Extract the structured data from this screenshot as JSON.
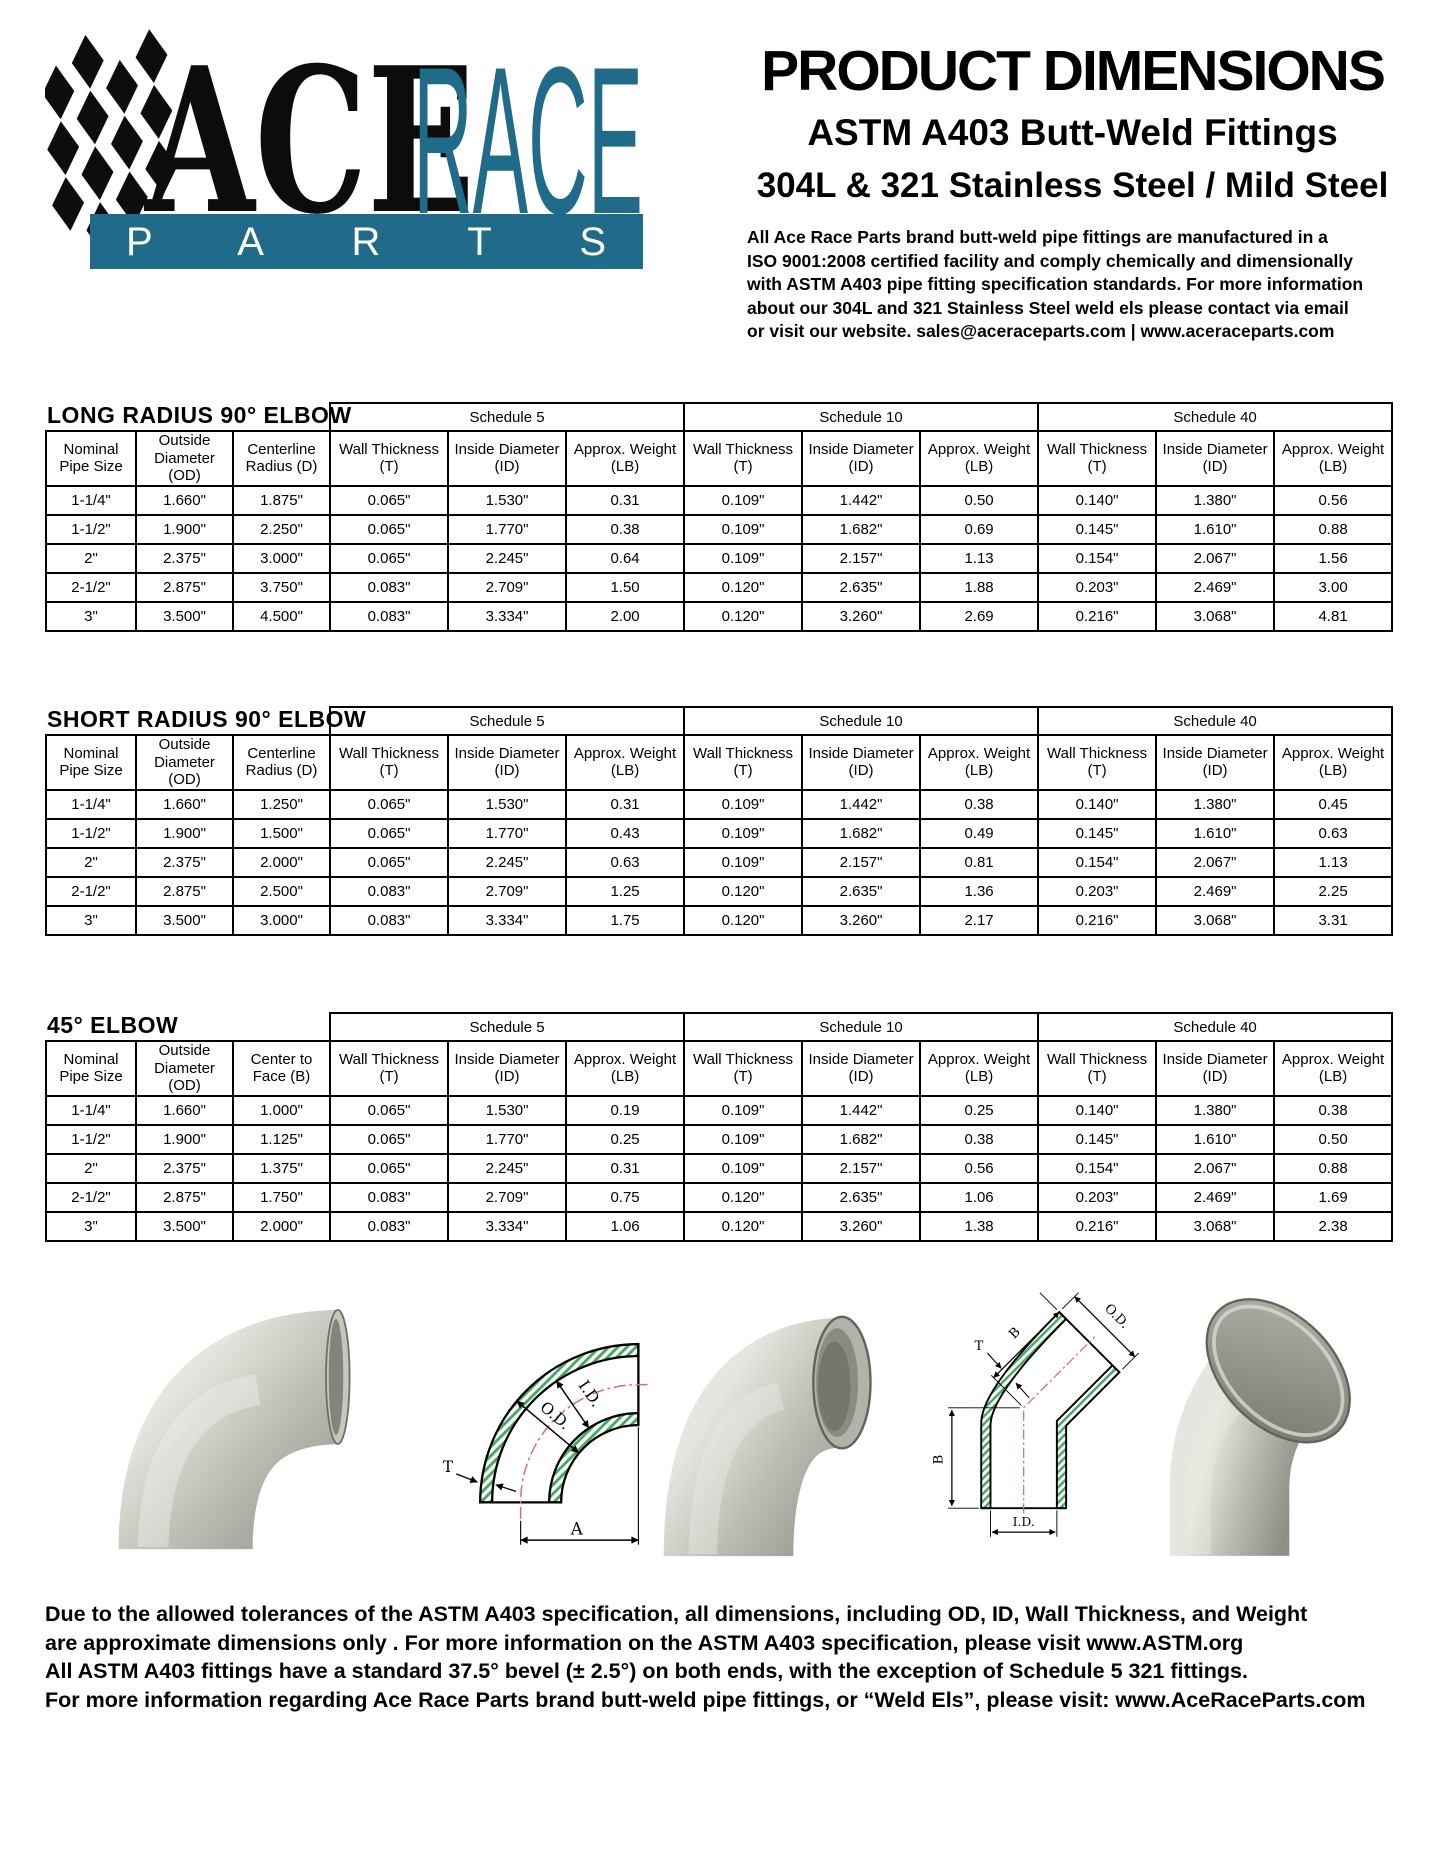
{
  "logo": {
    "ace": "ACE",
    "race": "RACE",
    "parts": "PARTS"
  },
  "colors": {
    "teal": "#206b89",
    "hatch_green": "#4aa863",
    "centerline_red": "#e06a6a",
    "text_black": "#000000"
  },
  "header": {
    "title": "PRODUCT DIMENSIONS",
    "subtitle1": "ASTM A403 Butt-Weld Fittings",
    "subtitle2": "304L & 321 Stainless Steel / Mild Steel",
    "para_lines": [
      "All Ace Race Parts brand butt-weld pipe fittings are manufactured in a",
      "ISO 9001:2008 certified facility and comply chemically and dimensionally",
      "with ASTM A403 pipe fitting specification standards. For more information",
      "about our 304L and 321 Stainless Steel weld els please contact via email",
      "or visit our website. sales@aceraceparts.com | www.aceraceparts.com"
    ]
  },
  "tables": [
    {
      "title": "LONG RADIUS 90° ELBOW",
      "base_headers": [
        "Nominal Pipe Size",
        "Outside Diameter (OD)",
        "Centerline Radius (D)"
      ],
      "schedule_headers": [
        "Schedule 5",
        "Schedule 10",
        "Schedule 40"
      ],
      "sub_headers": [
        "Wall Thickness (T)",
        "Inside Diameter (ID)",
        "Approx. Weight (LB)"
      ],
      "rows": [
        [
          "1-1/4\"",
          "1.660\"",
          "1.875\"",
          "0.065\"",
          "1.530\"",
          "0.31",
          "0.109\"",
          "1.442\"",
          "0.50",
          "0.140\"",
          "1.380\"",
          "0.56"
        ],
        [
          "1-1/2\"",
          "1.900\"",
          "2.250\"",
          "0.065\"",
          "1.770\"",
          "0.38",
          "0.109\"",
          "1.682\"",
          "0.69",
          "0.145\"",
          "1.610\"",
          "0.88"
        ],
        [
          "2\"",
          "2.375\"",
          "3.000\"",
          "0.065\"",
          "2.245\"",
          "0.64",
          "0.109\"",
          "2.157\"",
          "1.13",
          "0.154\"",
          "2.067\"",
          "1.56"
        ],
        [
          "2-1/2\"",
          "2.875\"",
          "3.750\"",
          "0.083\"",
          "2.709\"",
          "1.50",
          "0.120\"",
          "2.635\"",
          "1.88",
          "0.203\"",
          "2.469\"",
          "3.00"
        ],
        [
          "3\"",
          "3.500\"",
          "4.500\"",
          "0.083\"",
          "3.334\"",
          "2.00",
          "0.120\"",
          "3.260\"",
          "2.69",
          "0.216\"",
          "3.068\"",
          "4.81"
        ]
      ]
    },
    {
      "title": "SHORT RADIUS 90° ELBOW",
      "base_headers": [
        "Nominal Pipe Size",
        "Outside Diameter (OD)",
        "Centerline Radius (D)"
      ],
      "schedule_headers": [
        "Schedule 5",
        "Schedule 10",
        "Schedule 40"
      ],
      "sub_headers": [
        "Wall Thickness (T)",
        "Inside Diameter (ID)",
        "Approx. Weight (LB)"
      ],
      "rows": [
        [
          "1-1/4\"",
          "1.660\"",
          "1.250\"",
          "0.065\"",
          "1.530\"",
          "0.31",
          "0.109\"",
          "1.442\"",
          "0.38",
          "0.140\"",
          "1.380\"",
          "0.45"
        ],
        [
          "1-1/2\"",
          "1.900\"",
          "1.500\"",
          "0.065\"",
          "1.770\"",
          "0.43",
          "0.109\"",
          "1.682\"",
          "0.49",
          "0.145\"",
          "1.610\"",
          "0.63"
        ],
        [
          "2\"",
          "2.375\"",
          "2.000\"",
          "0.065\"",
          "2.245\"",
          "0.63",
          "0.109\"",
          "2.157\"",
          "0.81",
          "0.154\"",
          "2.067\"",
          "1.13"
        ],
        [
          "2-1/2\"",
          "2.875\"",
          "2.500\"",
          "0.083\"",
          "2.709\"",
          "1.25",
          "0.120\"",
          "2.635\"",
          "1.36",
          "0.203\"",
          "2.469\"",
          "2.25"
        ],
        [
          "3\"",
          "3.500\"",
          "3.000\"",
          "0.083\"",
          "3.334\"",
          "1.75",
          "0.120\"",
          "3.260\"",
          "2.17",
          "0.216\"",
          "3.068\"",
          "3.31"
        ]
      ]
    },
    {
      "title": "45° ELBOW",
      "base_headers": [
        "Nominal Pipe Size",
        "Outside Diameter (OD)",
        "Center to Face (B)"
      ],
      "schedule_headers": [
        "Schedule 5",
        "Schedule 10",
        "Schedule 40"
      ],
      "sub_headers": [
        "Wall Thickness (T)",
        "Inside Diameter (ID)",
        "Approx. Weight (LB)"
      ],
      "rows": [
        [
          "1-1/4\"",
          "1.660\"",
          "1.000\"",
          "0.065\"",
          "1.530\"",
          "0.19",
          "0.109\"",
          "1.442\"",
          "0.25",
          "0.140\"",
          "1.380\"",
          "0.38"
        ],
        [
          "1-1/2\"",
          "1.900\"",
          "1.125\"",
          "0.065\"",
          "1.770\"",
          "0.25",
          "0.109\"",
          "1.682\"",
          "0.38",
          "0.145\"",
          "1.610\"",
          "0.50"
        ],
        [
          "2\"",
          "2.375\"",
          "1.375\"",
          "0.065\"",
          "2.245\"",
          "0.31",
          "0.109\"",
          "2.157\"",
          "0.56",
          "0.154\"",
          "2.067\"",
          "0.88"
        ],
        [
          "2-1/2\"",
          "2.875\"",
          "1.750\"",
          "0.083\"",
          "2.709\"",
          "0.75",
          "0.120\"",
          "2.635\"",
          "1.06",
          "0.203\"",
          "2.469\"",
          "1.69"
        ],
        [
          "3\"",
          "3.500\"",
          "2.000\"",
          "0.083\"",
          "3.334\"",
          "1.06",
          "0.120\"",
          "3.260\"",
          "1.38",
          "0.216\"",
          "3.068\"",
          "2.38"
        ]
      ]
    }
  ],
  "figures": {
    "diagram_90": {
      "id": "I.D.",
      "od": "O.D.",
      "t": "T",
      "a": "A"
    },
    "diagram_45": {
      "b_top": "B",
      "od": "O.D.",
      "t": "T",
      "b_left": "B",
      "id": "I.D."
    }
  },
  "footer": {
    "lines": [
      "Due to the allowed tolerances of the ASTM A403 specification, all dimensions, including OD, ID, Wall Thickness, and Weight",
      "are approximate dimensions only . For more information on the ASTM A403 specification, please visit www.ASTM.org",
      "All ASTM A403 fittings have a standard 37.5° bevel (± 2.5°) on both ends, with the exception of Schedule 5 321 fittings.",
      "For more information regarding Ace Race Parts brand butt-weld pipe fittings, or “Weld Els”, please visit: www.AceRaceParts.com"
    ]
  }
}
